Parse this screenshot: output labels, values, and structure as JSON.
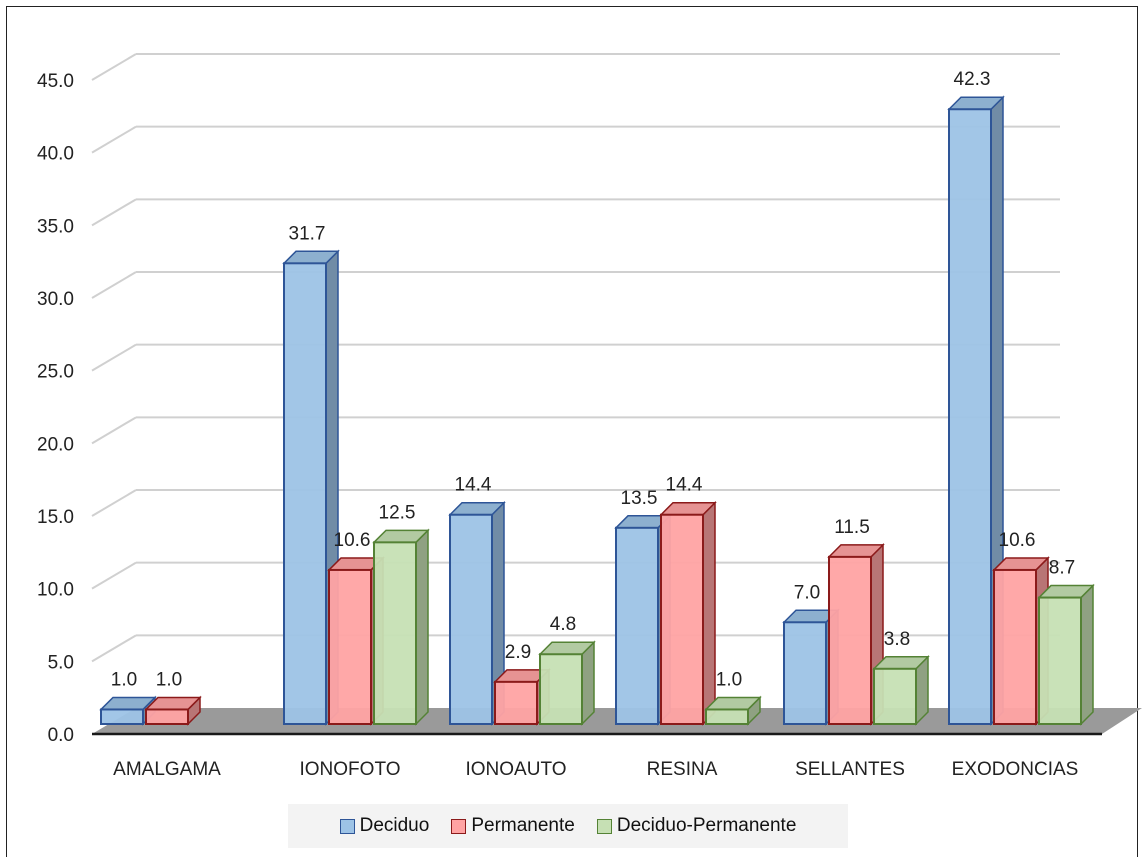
{
  "chart_data": {
    "type": "bar",
    "categories": [
      "AMALGAMA",
      "IONOFOTO",
      "IONOAUTO",
      "RESINA",
      "SELLANTES",
      "EXODONCIAS"
    ],
    "series": [
      {
        "name": "Deciduo",
        "values": [
          1.0,
          31.7,
          14.4,
          13.5,
          7.0,
          42.3
        ],
        "color": "#9dc3e6",
        "edge": "#2e5597"
      },
      {
        "name": "Permanente",
        "values": [
          1.0,
          10.6,
          2.9,
          14.4,
          11.5,
          10.6
        ],
        "color": "#ffa3a3",
        "edge": "#8b1a1a"
      },
      {
        "name": "Deciduo-Permanente",
        "values": [
          null,
          12.5,
          4.8,
          1.0,
          3.8,
          8.7
        ],
        "color": "#c6e0b4",
        "edge": "#548235"
      }
    ],
    "y_ticks": [
      "0.0",
      "5.0",
      "10.0",
      "15.0",
      "20.0",
      "25.0",
      "30.0",
      "35.0",
      "40.0",
      "45.0"
    ],
    "ylim": [
      0,
      45
    ],
    "grid": true,
    "legend_position": "bottom",
    "title": "",
    "xlabel": "",
    "ylabel": ""
  }
}
